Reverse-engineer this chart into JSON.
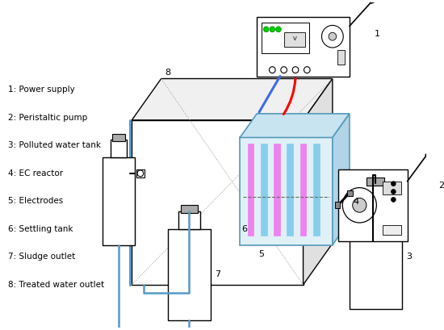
{
  "bg_color": "#ffffff",
  "line_color": "#000000",
  "pink_color": "#ee82ee",
  "cyan_electrode": "#87ceeb",
  "red_wire": "#ff0000",
  "blue_wire": "#4169e1",
  "legend_items": [
    "1: Power supply",
    "2: Peristaltic pump",
    "3: Polluted water tank",
    "4: EC reactor",
    "5: Electrodes",
    "6: Settling tank",
    "7: Sludge outlet",
    "8: Treated water outlet"
  ]
}
